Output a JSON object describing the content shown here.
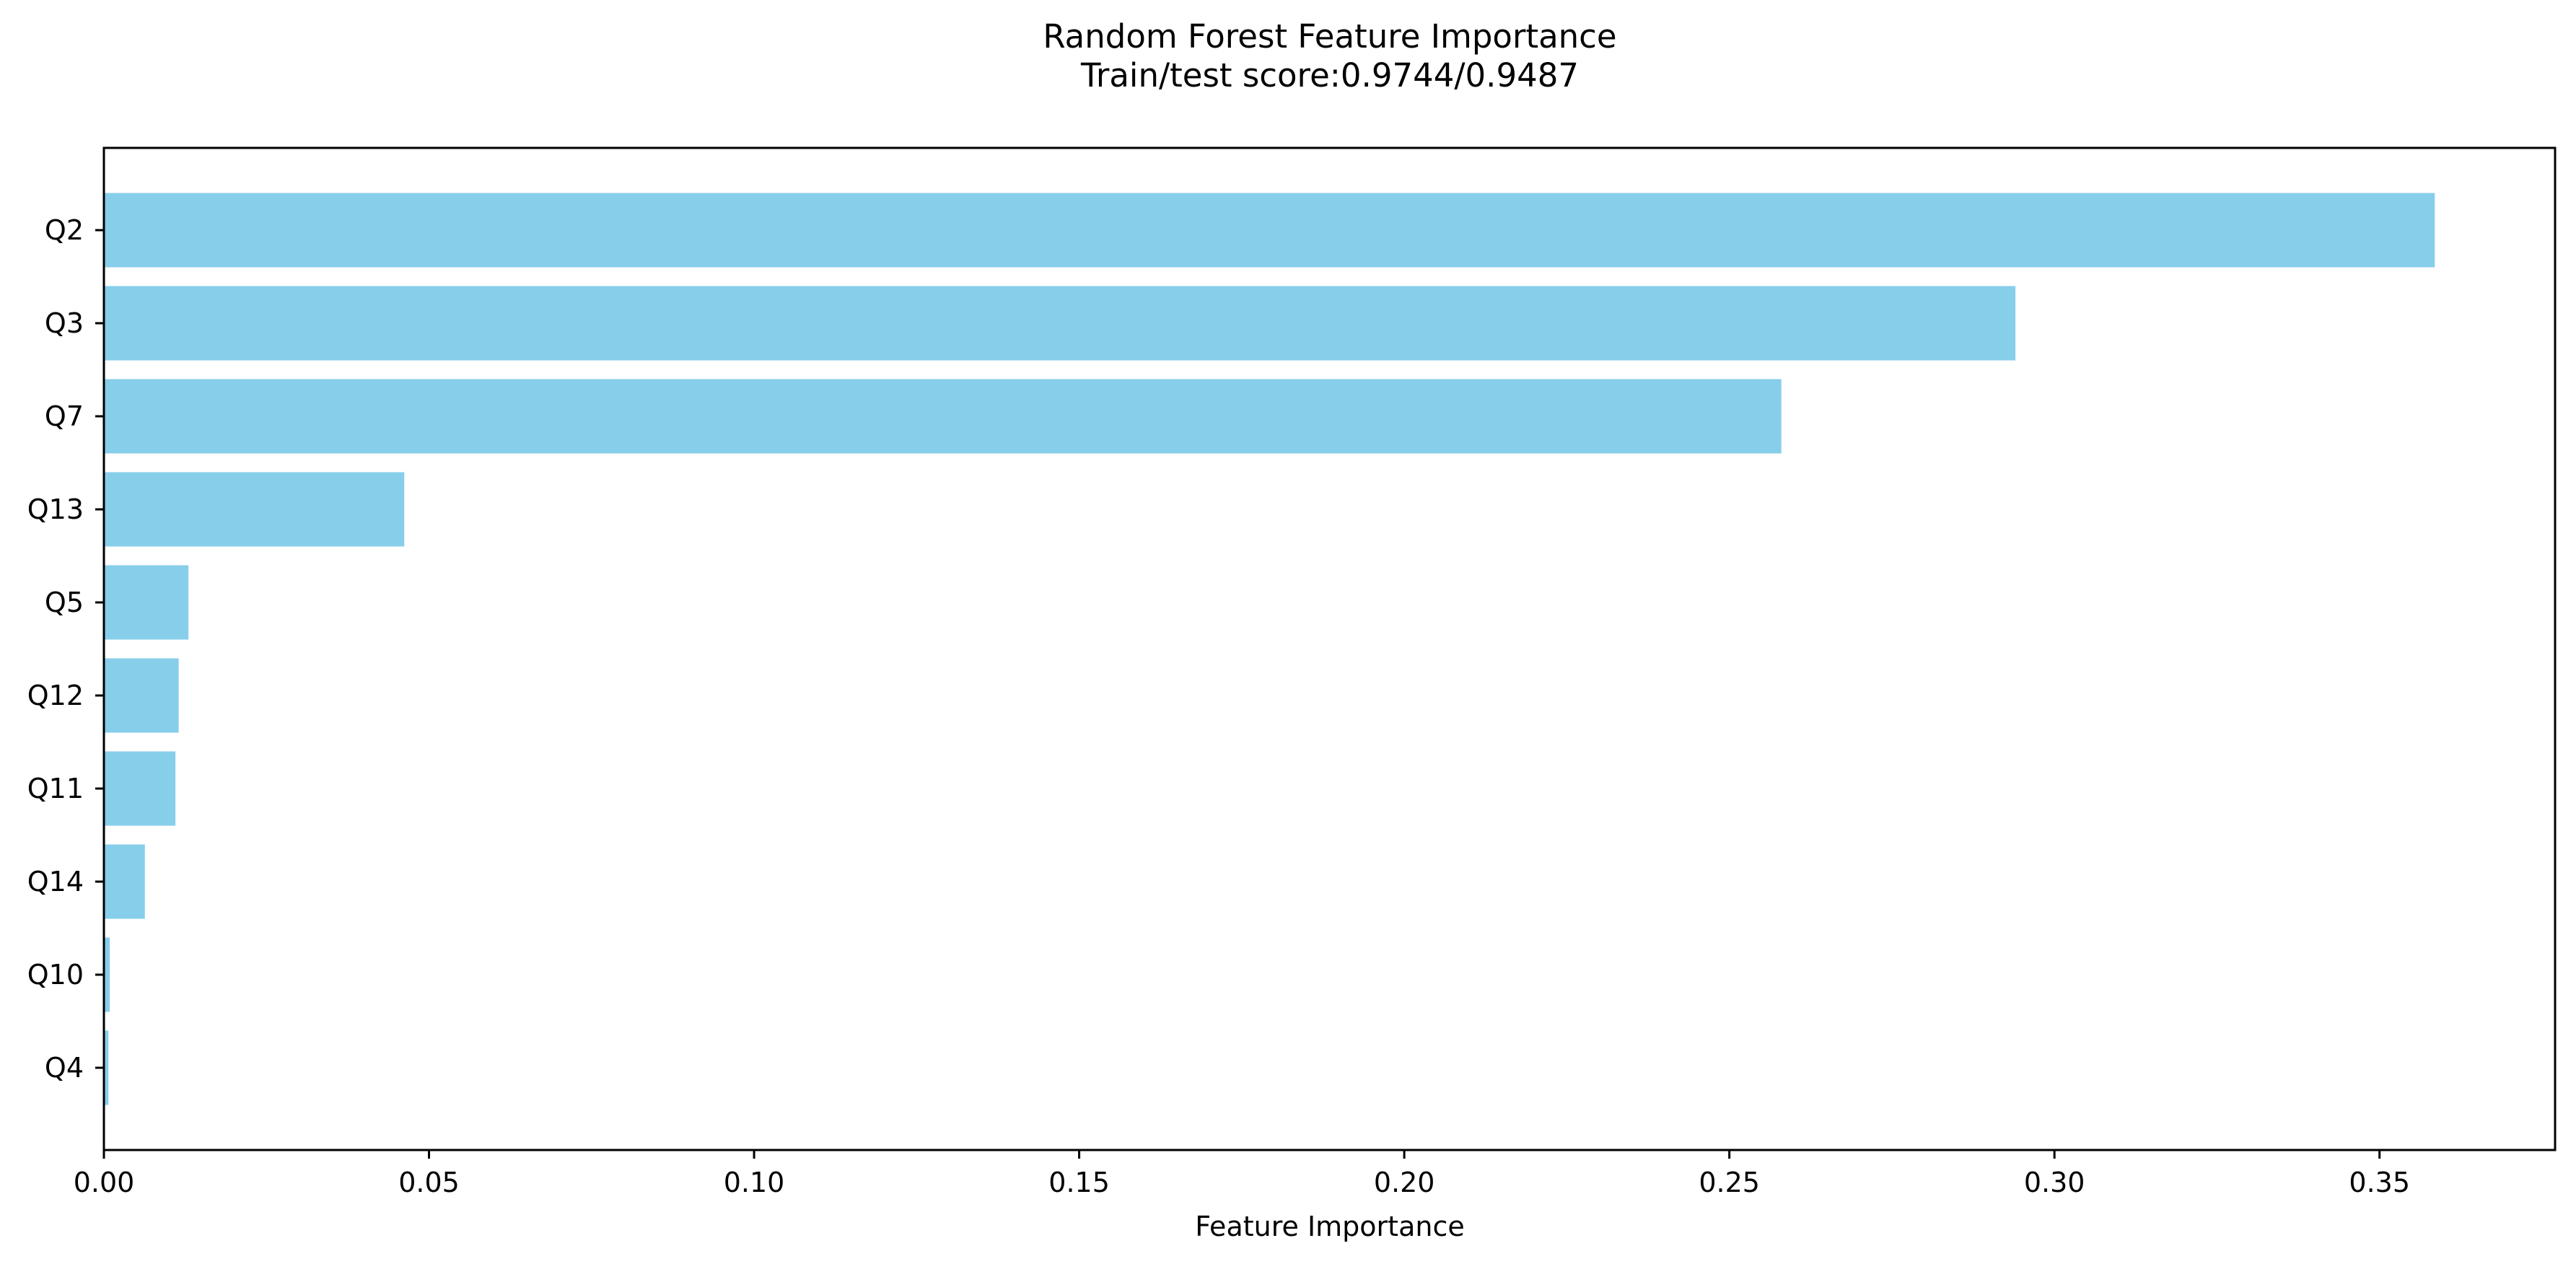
{
  "chart_data": {
    "type": "bar",
    "orientation": "horizontal",
    "title": "Random Forest Feature Importance",
    "subtitle": "Train/test score:0.9744/0.9487",
    "xlabel": "Feature Importance",
    "ylabel": "",
    "categories": [
      "Q2",
      "Q3",
      "Q7",
      "Q13",
      "Q5",
      "Q12",
      "Q11",
      "Q14",
      "Q10",
      "Q4"
    ],
    "values": [
      0.3585,
      0.294,
      0.258,
      0.0462,
      0.013,
      0.0115,
      0.011,
      0.0063,
      0.0009,
      0.0007
    ],
    "xlim": [
      0,
      0.377
    ],
    "xticks": [
      0.0,
      0.05,
      0.1,
      0.15,
      0.2,
      0.25,
      0.3,
      0.35
    ],
    "xtick_labels": [
      "0.00",
      "0.05",
      "0.10",
      "0.15",
      "0.20",
      "0.25",
      "0.30",
      "0.35"
    ],
    "bar_color": "#87CEEB",
    "grid": false,
    "legend": "none"
  }
}
